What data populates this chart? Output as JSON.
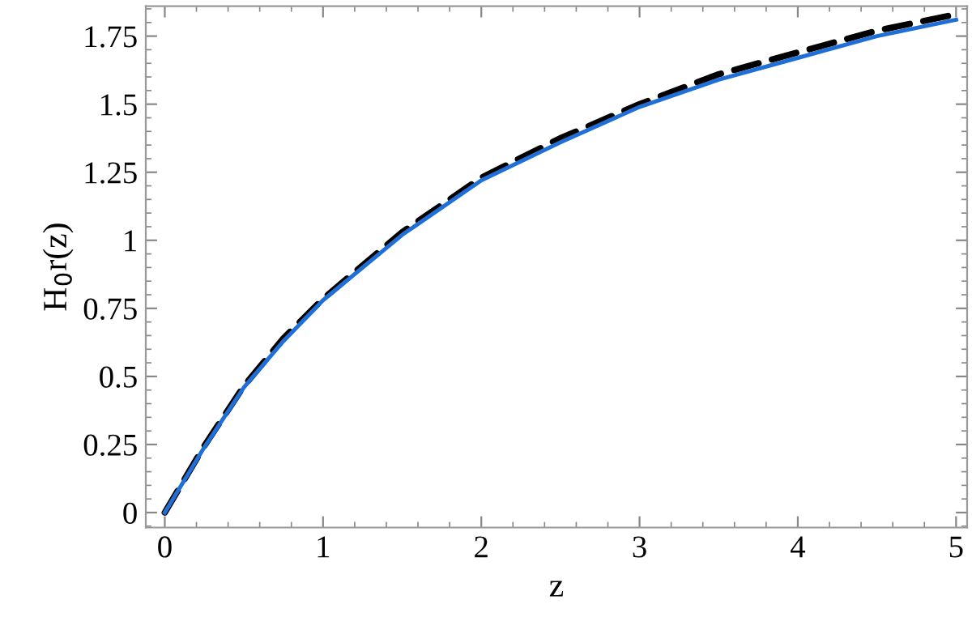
{
  "chart_data": {
    "type": "line",
    "xlabel": "z",
    "ylabel": "H$_{0}$r(z)",
    "xlim": [
      -0.12,
      5.07
    ],
    "ylim": [
      -0.055,
      1.86
    ],
    "xticks": [
      0,
      1,
      2,
      3,
      4,
      5
    ],
    "yticks": [
      0,
      0.25,
      0.5,
      0.75,
      1,
      1.25,
      1.5,
      1.75
    ],
    "grid": false,
    "legend": false,
    "series": [
      {
        "color": "#1f6fd6",
        "line_style": "solid",
        "x": [
          0,
          0.25,
          0.5,
          0.75,
          1,
          1.5,
          2,
          2.5,
          3,
          3.5,
          4,
          4.5,
          5
        ],
        "values": [
          0,
          0.24,
          0.46,
          0.63,
          0.78,
          1.02,
          1.22,
          1.36,
          1.49,
          1.59,
          1.67,
          1.75,
          1.81
        ]
      },
      {
        "color": "#000000",
        "line_style": "dashed",
        "x": [
          0,
          0.25,
          0.5,
          0.75,
          1,
          1.5,
          2,
          2.5,
          3,
          3.5,
          4,
          4.5,
          5
        ],
        "values": [
          0,
          0.245,
          0.465,
          0.64,
          0.785,
          1.03,
          1.23,
          1.375,
          1.5,
          1.61,
          1.69,
          1.77,
          1.83
        ]
      }
    ]
  }
}
